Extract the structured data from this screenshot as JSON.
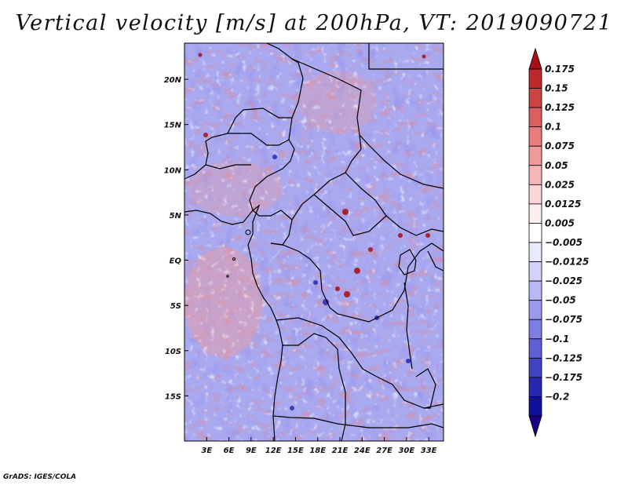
{
  "title": "Vertical velocity [m/s] at 200hPa, VT: 2019090721",
  "credit": "GrADS: IGES/COLA",
  "map": {
    "lat_range": [
      -20,
      24
    ],
    "lon_range": [
      0,
      35
    ],
    "lat_ticks": [
      "20N",
      "15N",
      "10N",
      "5N",
      "EQ",
      "5S",
      "10S",
      "15S"
    ],
    "lat_tick_values": [
      20,
      15,
      10,
      5,
      0,
      -5,
      -10,
      -15
    ],
    "lon_ticks": [
      "3E",
      "6E",
      "9E",
      "12E",
      "15E",
      "18E",
      "21E",
      "24E",
      "27E",
      "30E",
      "33E"
    ],
    "lon_tick_values": [
      3,
      6,
      9,
      12,
      15,
      18,
      21,
      24,
      27,
      30,
      33
    ]
  },
  "colorbar": {
    "labels": [
      "0.175",
      "0.15",
      "0.125",
      "0.1",
      "0.075",
      "0.05",
      "0.025",
      "0.0125",
      "0.005",
      "−0.005",
      "−0.0125",
      "−0.025",
      "−0.05",
      "−0.075",
      "−0.1",
      "−0.125",
      "−0.175",
      "−0.2"
    ],
    "colors": [
      "#a50f15",
      "#bb2a2c",
      "#cc4343",
      "#dc5f5f",
      "#e67c7c",
      "#ee9a9a",
      "#f5b8b8",
      "#fad5d5",
      "#fdeeee",
      "#ffffff",
      "#eaeaff",
      "#d2d2fb",
      "#b8b8f5",
      "#9a9aed",
      "#7e7ee2",
      "#6060d6",
      "#4242c4",
      "#2727b0",
      "#10109a",
      "#1a0080"
    ]
  }
}
